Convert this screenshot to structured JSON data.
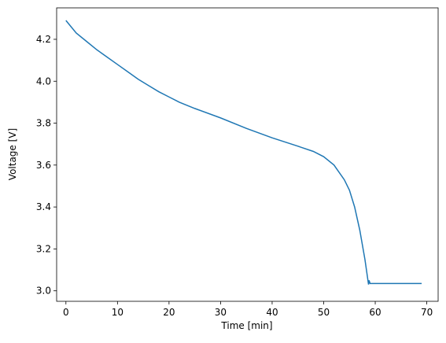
{
  "chart_data": {
    "type": "line",
    "x_label": "Time [min]",
    "y_label": "Voltage [V]",
    "x": [
      0,
      1,
      2,
      4,
      6,
      8,
      10,
      12,
      14,
      16,
      18,
      20,
      22,
      25,
      30,
      35,
      40,
      45,
      48,
      50,
      52,
      54,
      55,
      56,
      57,
      58,
      58.7,
      58.8,
      59,
      69
    ],
    "values": [
      4.29,
      4.26,
      4.23,
      4.19,
      4.15,
      4.115,
      4.08,
      4.045,
      4.01,
      3.98,
      3.95,
      3.925,
      3.9,
      3.87,
      3.825,
      3.775,
      3.73,
      3.69,
      3.665,
      3.64,
      3.6,
      3.53,
      3.48,
      3.4,
      3.29,
      3.15,
      3.03,
      3.05,
      3.035,
      3.035
    ],
    "color": "#1f77b4",
    "xlim": [
      -1.8,
      72.2
    ],
    "ylim": [
      2.95,
      4.35
    ],
    "xticks": [
      0,
      10,
      20,
      30,
      40,
      50,
      60,
      70
    ],
    "yticks": [
      {
        "value": 3.0,
        "label": "3.0"
      },
      3.2,
      3.4,
      3.6,
      3.8,
      {
        "value": 4.0,
        "label": "4.0"
      },
      4.2
    ]
  }
}
